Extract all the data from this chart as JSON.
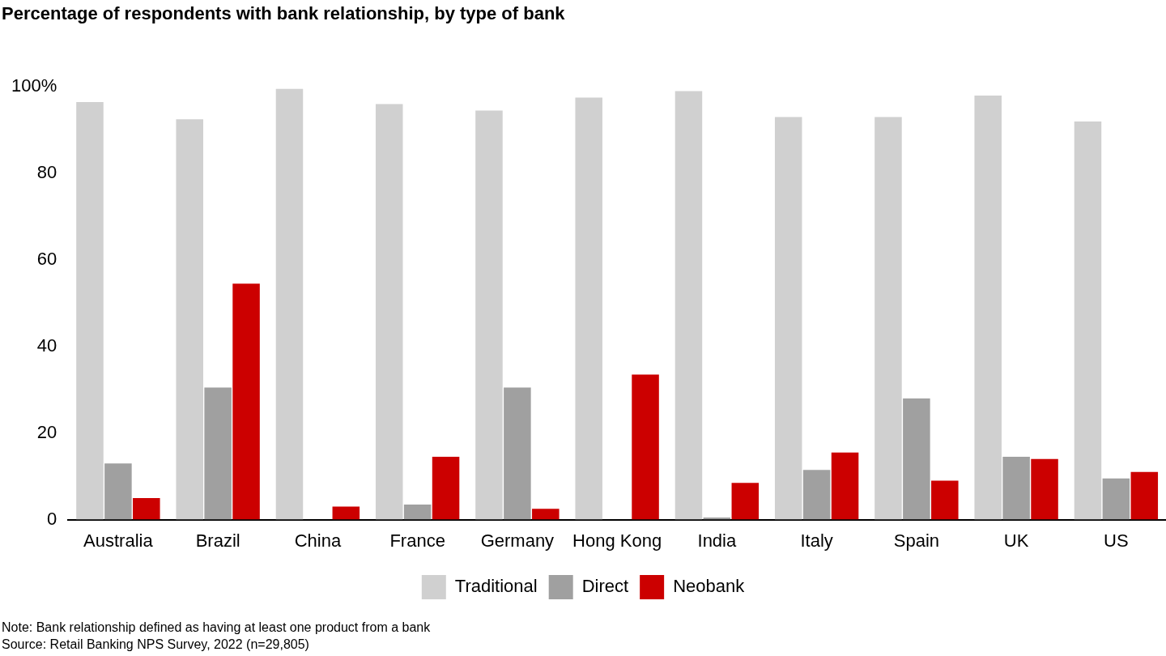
{
  "chart_data": {
    "type": "bar",
    "title": "Percentage of respondents with bank relationship, by type of bank",
    "categories": [
      "Australia",
      "Brazil",
      "China",
      "France",
      "Germany",
      "Hong Kong",
      "India",
      "Italy",
      "Spain",
      "UK",
      "US"
    ],
    "series": [
      {
        "name": "Traditional",
        "color": "#d0d0d0",
        "values": [
          96.5,
          92.5,
          99.5,
          96,
          94.5,
          97.5,
          99,
          93,
          93,
          98,
          92
        ]
      },
      {
        "name": "Direct",
        "color": "#a0a0a0",
        "values": [
          13,
          30.5,
          0,
          3.5,
          30.5,
          0,
          0.5,
          11.5,
          28,
          14.5,
          9.5
        ]
      },
      {
        "name": "Neobank",
        "color": "#cc0000",
        "values": [
          5,
          54.5,
          3,
          14.5,
          2.5,
          33.5,
          8.5,
          15.5,
          9,
          14,
          11
        ]
      }
    ],
    "ylim": [
      0,
      100
    ],
    "yticks": [
      0,
      20,
      40,
      60,
      80,
      {
        "value": 100,
        "label": "100%"
      }
    ],
    "grid": false,
    "legend": "bottom",
    "annotations": [
      "Note: Bank relationship defined as having at least one product from a bank",
      "Source: Retail Banking NPS Survey, 2022 (n=29,805)"
    ]
  }
}
